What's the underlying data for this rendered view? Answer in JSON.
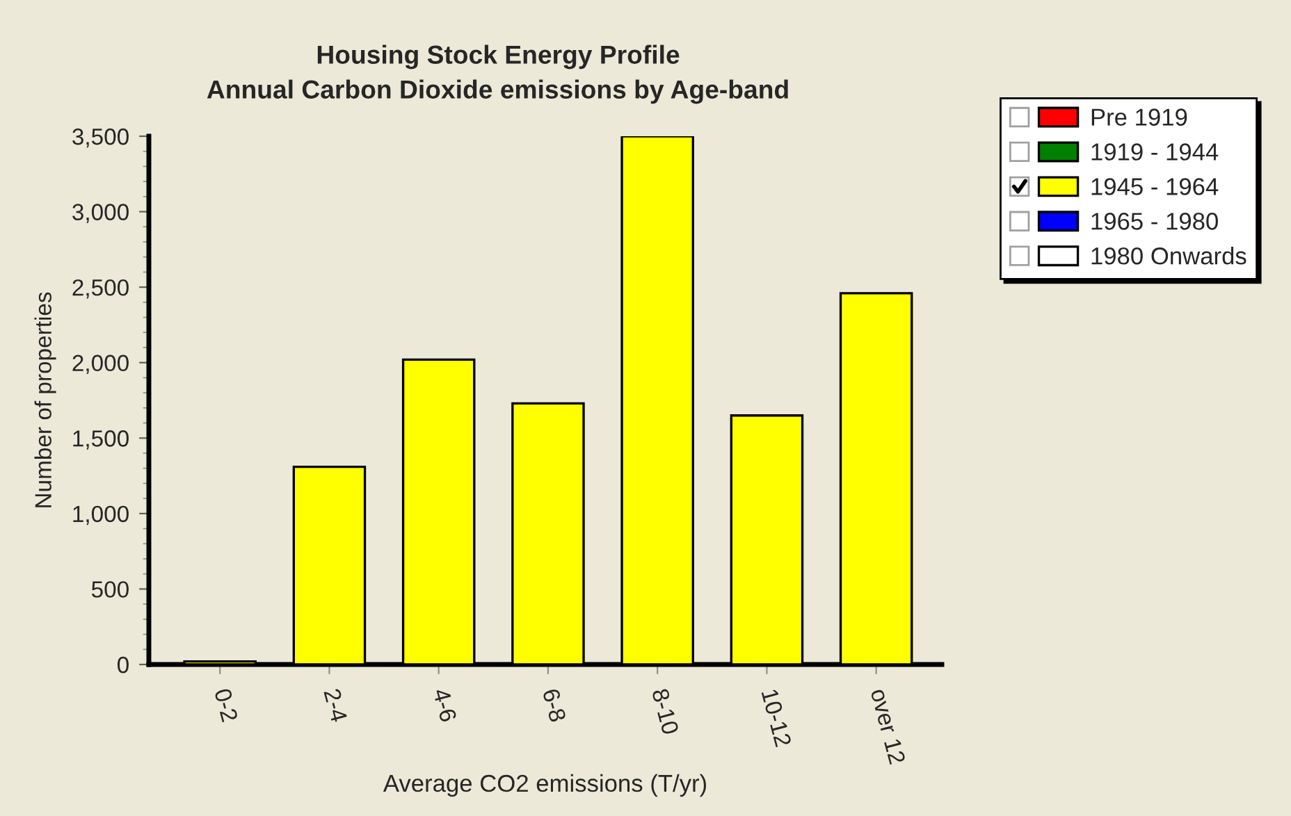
{
  "chart_data": {
    "type": "bar",
    "title": "Housing Stock Energy Profile",
    "subtitle": "Annual Carbon Dioxide emissions by Age-band",
    "xlabel": "Average CO2 emissions (T/yr)",
    "ylabel": "Number of properties",
    "categories": [
      "0-2",
      "2-4",
      "4-6",
      "6-8",
      "8-10",
      "10-12",
      "over 12"
    ],
    "series": [
      {
        "name": "Pre 1919",
        "color": "#ff0000",
        "values": [
          null,
          null,
          null,
          null,
          null,
          null,
          null
        ]
      },
      {
        "name": "1919 - 1944",
        "color": "#008000",
        "values": [
          null,
          null,
          null,
          null,
          null,
          null,
          null
        ]
      },
      {
        "name": "1945 - 1964",
        "color": "#ffff00",
        "values": [
          20,
          1310,
          2020,
          1730,
          3500,
          1650,
          2460
        ]
      },
      {
        "name": "1965 - 1980",
        "color": "#0000ff",
        "values": [
          null,
          null,
          null,
          null,
          null,
          null,
          null
        ]
      },
      {
        "name": "1980 Onwards",
        "color": "#ffffff",
        "values": [
          null,
          null,
          null,
          null,
          null,
          null,
          null
        ]
      }
    ],
    "ylim": [
      0,
      3500
    ],
    "yticks": [
      0,
      {
        "value": 100,
        "label": null
      },
      {
        "value": 200,
        "label": null
      },
      {
        "value": 300,
        "label": null
      },
      {
        "value": 400,
        "label": null
      },
      500,
      {
        "value": 600,
        "label": null
      },
      {
        "value": 700,
        "label": null
      },
      {
        "value": 800,
        "label": null
      },
      {
        "value": 900,
        "label": null
      },
      {
        "value": 1000,
        "label": "1,000"
      },
      {
        "value": 1100,
        "label": null
      },
      {
        "value": 1200,
        "label": null
      },
      {
        "value": 1300,
        "label": null
      },
      {
        "value": 1400,
        "label": null
      },
      {
        "value": 1500,
        "label": "1,500"
      },
      {
        "value": 1600,
        "label": null
      },
      {
        "value": 1700,
        "label": null
      },
      {
        "value": 1800,
        "label": null
      },
      {
        "value": 1900,
        "label": null
      },
      {
        "value": 2000,
        "label": "2,000"
      },
      {
        "value": 2100,
        "label": null
      },
      {
        "value": 2200,
        "label": null
      },
      {
        "value": 2300,
        "label": null
      },
      {
        "value": 2400,
        "label": null
      },
      {
        "value": 2500,
        "label": "2,500"
      },
      {
        "value": 2600,
        "label": null
      },
      {
        "value": 2700,
        "label": null
      },
      {
        "value": 2800,
        "label": null
      },
      {
        "value": 2900,
        "label": null
      },
      {
        "value": 3000,
        "label": "3,000"
      },
      {
        "value": 3100,
        "label": null
      },
      {
        "value": 3200,
        "label": null
      },
      {
        "value": 3300,
        "label": null
      },
      {
        "value": 3400,
        "label": null
      },
      {
        "value": 3500,
        "label": "3,500"
      }
    ],
    "legend": "top right"
  }
}
